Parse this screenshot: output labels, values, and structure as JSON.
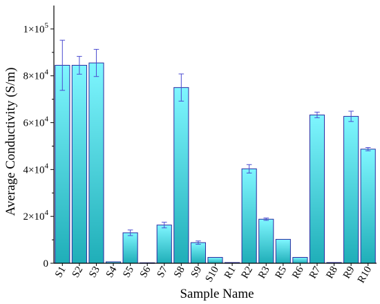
{
  "chart_data": {
    "type": "bar",
    "xlabel": "Sample Name",
    "ylabel": "Average Conductivity (S/m)",
    "ylim": [
      0,
      110000
    ],
    "y_ticks": [
      {
        "value": 0,
        "label": "0"
      },
      {
        "value": 20000,
        "label": "2×10",
        "exp": "4"
      },
      {
        "value": 40000,
        "label": "4×10",
        "exp": "4"
      },
      {
        "value": 60000,
        "label": "6×10",
        "exp": "4"
      },
      {
        "value": 80000,
        "label": "8×10",
        "exp": "4"
      },
      {
        "value": 100000,
        "label": "1×10",
        "exp": "5"
      }
    ],
    "categories": [
      "S1",
      "S2",
      "S3",
      "S4",
      "S5",
      "S6",
      "S7",
      "S8",
      "S9",
      "S10",
      "R1",
      "R2",
      "R3",
      "R5",
      "R6",
      "R7",
      "R8",
      "R9",
      "R10"
    ],
    "values": [
      84500,
      84500,
      85500,
      600,
      13000,
      200,
      16300,
      75000,
      8800,
      2500,
      300,
      40300,
      18800,
      10200,
      2500,
      63300,
      300,
      62700,
      48700
    ],
    "errors": [
      10700,
      3800,
      5800,
      0,
      1200,
      0,
      1200,
      5800,
      700,
      0,
      0,
      1800,
      500,
      0,
      0,
      1200,
      0,
      2200,
      700
    ],
    "bar_gradient": {
      "top": "#7ff6ff",
      "bottom": "#1faeb8"
    },
    "bar_stroke": "#2a2aa0",
    "error_color": "#4a4ad0"
  }
}
